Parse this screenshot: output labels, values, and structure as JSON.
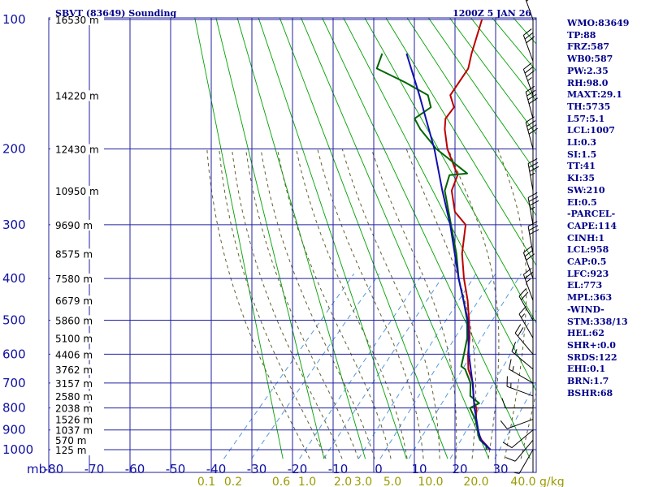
{
  "chart_data": {
    "type": "skew-t log-p sounding",
    "title_left": "SBVT (83649) Sounding",
    "title_right": "1200Z  5 JAN 26",
    "pressure_unit_label": "mb",
    "pressure_levels": [
      100,
      200,
      300,
      400,
      500,
      600,
      700,
      800,
      900,
      1000
    ],
    "height_labels": [
      {
        "p": 100,
        "text": "16530 m"
      },
      {
        "p": 150,
        "text": "14220 m"
      },
      {
        "p": 200,
        "text": "12430 m"
      },
      {
        "p": 250,
        "text": "10950 m"
      },
      {
        "p": 300,
        "text": "9690 m"
      },
      {
        "p": 350,
        "text": "8575 m"
      },
      {
        "p": 400,
        "text": "7580 m"
      },
      {
        "p": 450,
        "text": "6679 m"
      },
      {
        "p": 500,
        "text": "5860 m"
      },
      {
        "p": 550,
        "text": "5100 m"
      },
      {
        "p": 600,
        "text": "4406 m"
      },
      {
        "p": 650,
        "text": "3762 m"
      },
      {
        "p": 700,
        "text": "3157 m"
      },
      {
        "p": 750,
        "text": "2580 m"
      },
      {
        "p": 800,
        "text": "2038 m"
      },
      {
        "p": 850,
        "text": "1526 m"
      },
      {
        "p": 900,
        "text": "1037 m"
      },
      {
        "p": 950,
        "text": "570 m"
      },
      {
        "p": 1000,
        "text": "125 m"
      }
    ],
    "temperature_axis": {
      "unit": "C",
      "ticks": [
        -80,
        -70,
        -60,
        -50,
        -40,
        -30,
        -20,
        -10,
        0,
        10,
        20,
        30
      ]
    },
    "mixing_ratio_labels": [
      "0.1",
      "0.2",
      "0.6",
      "1.0",
      "2.0",
      "3.0",
      "5.0",
      "10.0",
      "20.0",
      "40.0"
    ],
    "mixing_ratio_unit": "g/kg",
    "temperature_profile": [
      [
        1000,
        22.2
      ],
      [
        980,
        20.8
      ],
      [
        950,
        18.2
      ],
      [
        925,
        16.5
      ],
      [
        900,
        15.0
      ],
      [
        850,
        12.2
      ],
      [
        800,
        9.8
      ],
      [
        780,
        8.2
      ],
      [
        750,
        6.4
      ],
      [
        700,
        3.4
      ],
      [
        650,
        -0.8
      ],
      [
        600,
        -4.2
      ],
      [
        550,
        -7.4
      ],
      [
        500,
        -11.5
      ],
      [
        450,
        -16.2
      ],
      [
        400,
        -22.0
      ],
      [
        350,
        -28.0
      ],
      [
        300,
        -33.5
      ],
      [
        280,
        -39.0
      ],
      [
        250,
        -44.5
      ],
      [
        230,
        -46.5
      ],
      [
        200,
        -54.8
      ],
      [
        180,
        -59.8
      ],
      [
        170,
        -62.0
      ],
      [
        160,
        -62.4
      ],
      [
        150,
        -66.0
      ],
      [
        130,
        -67.5
      ],
      [
        120,
        -70.0
      ],
      [
        100,
        -75.0
      ]
    ],
    "dewpoint_profile": [
      [
        1000,
        21.5
      ],
      [
        980,
        20.6
      ],
      [
        950,
        17.8
      ],
      [
        925,
        16.2
      ],
      [
        900,
        15.0
      ],
      [
        850,
        12.0
      ],
      [
        800,
        8.2
      ],
      [
        780,
        9.4
      ],
      [
        750,
        5.6
      ],
      [
        700,
        2.8
      ],
      [
        650,
        -1.6
      ],
      [
        640,
        -3.2
      ],
      [
        600,
        -5.2
      ],
      [
        550,
        -8.0
      ],
      [
        500,
        -12.0
      ],
      [
        450,
        -17.2
      ],
      [
        400,
        -23.3
      ],
      [
        350,
        -29.4
      ],
      [
        300,
        -37.1
      ],
      [
        250,
        -46.2
      ],
      [
        230,
        -48.5
      ],
      [
        228,
        -44.5
      ],
      [
        200,
        -57.5
      ],
      [
        180,
        -65.8
      ],
      [
        170,
        -69.6
      ],
      [
        160,
        -68.1
      ],
      [
        150,
        -71.5
      ],
      [
        140,
        -80.0
      ],
      [
        130,
        -90.0
      ],
      [
        120,
        -92.0
      ]
    ],
    "parcel_profile": [
      [
        1000,
        22.5
      ],
      [
        950,
        18.0
      ],
      [
        900,
        15.1
      ],
      [
        850,
        12.3
      ],
      [
        800,
        9.3
      ],
      [
        700,
        3.3
      ],
      [
        600,
        -4.0
      ],
      [
        500,
        -11.8
      ],
      [
        400,
        -23.3
      ],
      [
        300,
        -37.3
      ],
      [
        250,
        -46.8
      ],
      [
        200,
        -58.0
      ],
      [
        150,
        -73.6
      ],
      [
        120,
        -86.0
      ]
    ],
    "wind_barbs": [
      {
        "p": 1000,
        "dir": 210,
        "kt": 8
      },
      {
        "p": 950,
        "dir": 220,
        "kt": 10
      },
      {
        "p": 900,
        "dir": 230,
        "kt": 10
      },
      {
        "p": 850,
        "dir": 250,
        "kt": 10
      },
      {
        "p": 800,
        "dir": 270,
        "kt": 10
      },
      {
        "p": 750,
        "dir": 290,
        "kt": 15
      },
      {
        "p": 700,
        "dir": 300,
        "kt": 15
      },
      {
        "p": 650,
        "dir": 310,
        "kt": 15
      },
      {
        "p": 600,
        "dir": 320,
        "kt": 20
      },
      {
        "p": 550,
        "dir": 330,
        "kt": 15
      },
      {
        "p": 500,
        "dir": 330,
        "kt": 20
      },
      {
        "p": 450,
        "dir": 340,
        "kt": 25
      },
      {
        "p": 400,
        "dir": 340,
        "kt": 30
      },
      {
        "p": 350,
        "dir": 350,
        "kt": 30
      },
      {
        "p": 300,
        "dir": 350,
        "kt": 35
      },
      {
        "p": 250,
        "dir": 350,
        "kt": 35
      },
      {
        "p": 200,
        "dir": 345,
        "kt": 40
      },
      {
        "p": 170,
        "dir": 345,
        "kt": 40
      },
      {
        "p": 150,
        "dir": 340,
        "kt": 35
      },
      {
        "p": 125,
        "dir": 340,
        "kt": 30
      },
      {
        "p": 100,
        "dir": 340,
        "kt": 25
      }
    ],
    "series_colors": {
      "temperature": "#bb0000",
      "dewpoint": "#006600",
      "parcel": "#1010b0"
    }
  },
  "indices": [
    "WMO:83649",
    "TP:88",
    "FRZ:587",
    "WB0:587",
    "PW:2.35",
    "RH:98.0",
    "MAXT:29.1",
    "TH:5735",
    "L57:5.1",
    "LCL:1007",
    "LI:0.3",
    "SI:1.5",
    "TT:41",
    "KI:35",
    "SW:210",
    "EI:0.5",
    "-PARCEL-",
    "CAPE:114",
    "CINH:1",
    "LCL:958",
    "CAP:0.5",
    "LFC:923",
    "EL:773",
    "MPL:363",
    "-WIND-",
    "STM:338/13",
    "HEL:62",
    "SHR+:0.0",
    "SRDS:122",
    "EHI:0.1",
    "BRN:1.7",
    "BSHR:68"
  ],
  "colors": {
    "isobar": "#2020a0",
    "isotherm": "#2020a0",
    "dry_adiabat": "#00a000",
    "moist_adiabat": "#606030",
    "mixing_ratio": "#5599dd",
    "text": "#00008b"
  }
}
